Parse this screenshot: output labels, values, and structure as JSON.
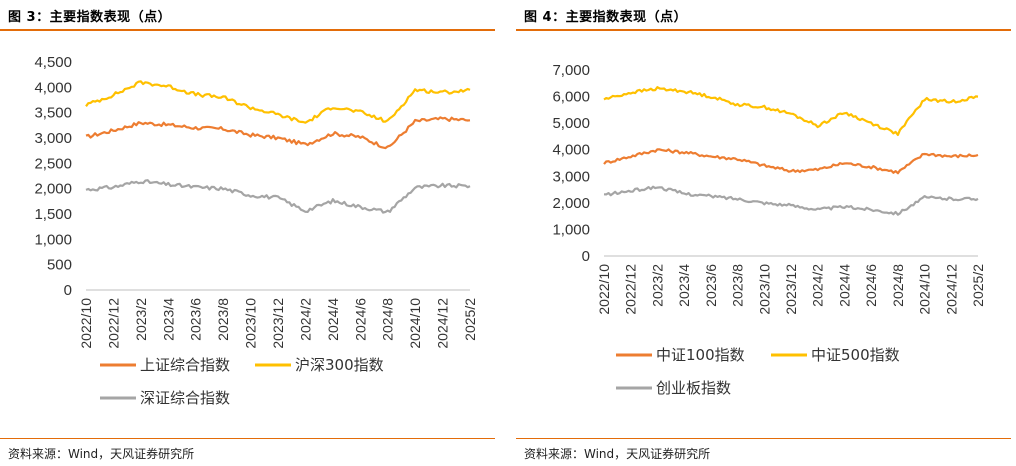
{
  "panels": [
    {
      "title": "图 3：主要指数表现（点）",
      "source": "资料来源：Wind，天风证券研究所"
    },
    {
      "title": "图 4：主要指数表现（点）",
      "source": "资料来源：Wind，天风证券研究所"
    }
  ],
  "chart_data": [
    {
      "type": "line",
      "title": "主要指数表现（点）",
      "x": [
        "2022/10",
        "2022/12",
        "2023/2",
        "2023/4",
        "2023/6",
        "2023/8",
        "2023/10",
        "2023/12",
        "2024/2",
        "2024/4",
        "2024/6",
        "2024/8",
        "2024/10",
        "2024/12",
        "2025/2"
      ],
      "ylim": [
        0,
        4500
      ],
      "yticks": [
        "0",
        "500",
        "1,000",
        "1,500",
        "2,000",
        "2,500",
        "3,000",
        "3,500",
        "4,000",
        "4,500"
      ],
      "series": [
        {
          "name": "上证综合指数",
          "color": "#ed7d31",
          "values": [
            3020,
            3150,
            3300,
            3260,
            3200,
            3180,
            3060,
            3000,
            2870,
            3090,
            3020,
            2800,
            3330,
            3380,
            3350
          ]
        },
        {
          "name": "沪深300指数",
          "color": "#ffc000",
          "values": [
            3650,
            3850,
            4100,
            4020,
            3860,
            3800,
            3600,
            3460,
            3300,
            3620,
            3510,
            3320,
            3950,
            3900,
            3950
          ]
        },
        {
          "name": "深证综合指数",
          "color": "#a5a5a5",
          "values": [
            1980,
            2030,
            2150,
            2080,
            2030,
            2000,
            1870,
            1820,
            1560,
            1760,
            1640,
            1540,
            2020,
            2060,
            2050
          ]
        }
      ]
    },
    {
      "type": "line",
      "title": "主要指数表现（点）",
      "x": [
        "2022/10",
        "2022/12",
        "2023/2",
        "2023/4",
        "2023/6",
        "2023/8",
        "2023/10",
        "2023/12",
        "2024/2",
        "2024/4",
        "2024/6",
        "2024/8",
        "2024/10",
        "2024/12",
        "2025/2"
      ],
      "ylim": [
        0,
        7000
      ],
      "yticks": [
        "0",
        "1,000",
        "2,000",
        "3,000",
        "4,000",
        "5,000",
        "6,000",
        "7,000"
      ],
      "series": [
        {
          "name": "中证100指数",
          "color": "#ed7d31",
          "values": [
            3500,
            3750,
            4000,
            3900,
            3750,
            3650,
            3400,
            3200,
            3250,
            3500,
            3350,
            3150,
            3850,
            3750,
            3800
          ]
        },
        {
          "name": "中证500指数",
          "color": "#ffc000",
          "values": [
            5900,
            6150,
            6300,
            6200,
            6000,
            5700,
            5600,
            5350,
            4900,
            5400,
            5000,
            4600,
            5900,
            5800,
            6000
          ]
        },
        {
          "name": "创业板指数",
          "color": "#a5a5a5",
          "values": [
            2300,
            2450,
            2600,
            2350,
            2250,
            2150,
            2000,
            1900,
            1750,
            1850,
            1750,
            1600,
            2200,
            2150,
            2150
          ]
        }
      ]
    }
  ]
}
